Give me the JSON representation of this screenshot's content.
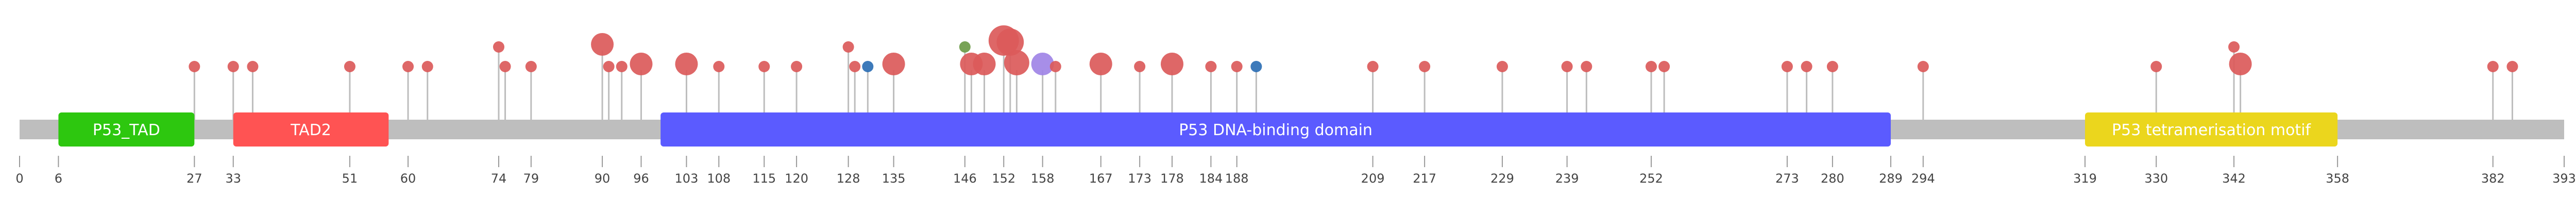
{
  "chart_data": {
    "type": "lollipop",
    "x_range": [
      0,
      393
    ],
    "backbone_color": "#bebebe",
    "ticks": [
      0,
      6,
      27,
      33,
      51,
      60,
      74,
      79,
      90,
      96,
      103,
      108,
      115,
      120,
      128,
      135,
      146,
      152,
      158,
      167,
      173,
      178,
      184,
      188,
      209,
      217,
      229,
      239,
      252,
      273,
      280,
      289,
      294,
      319,
      330,
      342,
      358,
      382,
      393
    ],
    "domains": [
      {
        "name": "P53_TAD",
        "start": 6,
        "end": 27,
        "color": "#2dc70f"
      },
      {
        "name": "TAD2",
        "start": 33,
        "end": 57,
        "color": "#ff5353"
      },
      {
        "name": "P53 DNA-binding domain",
        "start": 99,
        "end": 289,
        "color": "#5b5bff"
      },
      {
        "name": "P53 tetramerisation motif",
        "start": 319,
        "end": 358,
        "color": "#ebd61d"
      }
    ],
    "mutations": [
      {
        "pos": 27,
        "count": 1,
        "type": "missense"
      },
      {
        "pos": 33,
        "count": 1,
        "type": "missense"
      },
      {
        "pos": 36,
        "count": 1,
        "type": "missense"
      },
      {
        "pos": 51,
        "count": 1,
        "type": "missense"
      },
      {
        "pos": 60,
        "count": 1,
        "type": "missense"
      },
      {
        "pos": 63,
        "count": 1,
        "type": "missense"
      },
      {
        "pos": 74,
        "count": 1,
        "type": "missense",
        "elevated": true
      },
      {
        "pos": 75,
        "count": 1,
        "type": "missense"
      },
      {
        "pos": 79,
        "count": 1,
        "type": "missense"
      },
      {
        "pos": 90,
        "count": 2,
        "type": "missense",
        "elevated": true
      },
      {
        "pos": 91,
        "count": 1,
        "type": "missense"
      },
      {
        "pos": 93,
        "count": 1,
        "type": "missense"
      },
      {
        "pos": 96,
        "count": 2,
        "type": "missense"
      },
      {
        "pos": 103,
        "count": 2,
        "type": "missense"
      },
      {
        "pos": 108,
        "count": 1,
        "type": "missense"
      },
      {
        "pos": 115,
        "count": 1,
        "type": "missense"
      },
      {
        "pos": 120,
        "count": 1,
        "type": "missense"
      },
      {
        "pos": 128,
        "count": 1,
        "type": "missense",
        "elevated": true
      },
      {
        "pos": 129,
        "count": 1,
        "type": "missense"
      },
      {
        "pos": 131,
        "count": 1,
        "type": "truncating"
      },
      {
        "pos": 135,
        "count": 2,
        "type": "missense"
      },
      {
        "pos": 146,
        "count": 1,
        "type": "inframe",
        "elevated": true
      },
      {
        "pos": 147,
        "count": 2,
        "type": "missense"
      },
      {
        "pos": 149,
        "count": 2,
        "type": "missense"
      },
      {
        "pos": 152,
        "count": 6,
        "type": "missense",
        "elevated": true
      },
      {
        "pos": 153,
        "count": 4,
        "type": "missense",
        "elevated": true
      },
      {
        "pos": 154,
        "count": 3,
        "type": "missense"
      },
      {
        "pos": 158,
        "count": 2,
        "type": "other"
      },
      {
        "pos": 160,
        "count": 1,
        "type": "missense"
      },
      {
        "pos": 167,
        "count": 2,
        "type": "missense"
      },
      {
        "pos": 173,
        "count": 1,
        "type": "missense"
      },
      {
        "pos": 178,
        "count": 2,
        "type": "missense"
      },
      {
        "pos": 184,
        "count": 1,
        "type": "missense"
      },
      {
        "pos": 188,
        "count": 1,
        "type": "missense"
      },
      {
        "pos": 191,
        "count": 1,
        "type": "truncating"
      },
      {
        "pos": 209,
        "count": 1,
        "type": "missense"
      },
      {
        "pos": 217,
        "count": 1,
        "type": "missense"
      },
      {
        "pos": 229,
        "count": 1,
        "type": "missense"
      },
      {
        "pos": 239,
        "count": 1,
        "type": "missense"
      },
      {
        "pos": 242,
        "count": 1,
        "type": "missense"
      },
      {
        "pos": 252,
        "count": 1,
        "type": "missense"
      },
      {
        "pos": 254,
        "count": 1,
        "type": "missense"
      },
      {
        "pos": 273,
        "count": 1,
        "type": "missense"
      },
      {
        "pos": 276,
        "count": 1,
        "type": "missense"
      },
      {
        "pos": 280,
        "count": 1,
        "type": "missense"
      },
      {
        "pos": 294,
        "count": 1,
        "type": "missense"
      },
      {
        "pos": 330,
        "count": 1,
        "type": "missense"
      },
      {
        "pos": 342,
        "count": 1,
        "type": "missense",
        "elevated": true
      },
      {
        "pos": 343,
        "count": 2,
        "type": "missense"
      },
      {
        "pos": 382,
        "count": 1,
        "type": "missense"
      },
      {
        "pos": 385,
        "count": 1,
        "type": "missense"
      }
    ],
    "colors": {
      "missense": "#db5a5a",
      "truncating": "#2d6fb4",
      "inframe": "#6c9b48",
      "other": "#a084e6"
    }
  }
}
